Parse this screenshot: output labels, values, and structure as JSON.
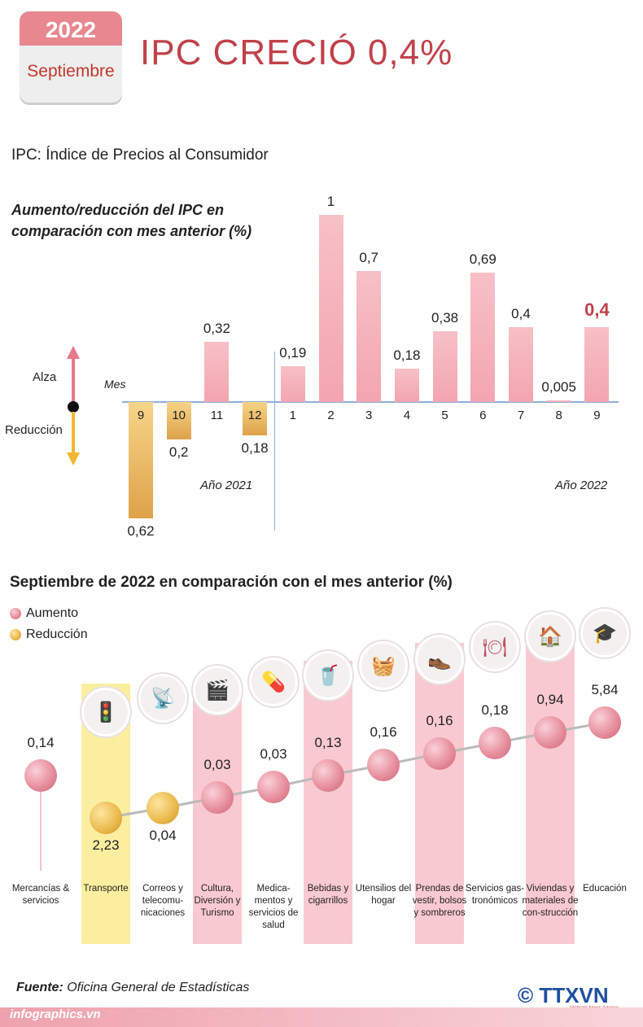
{
  "header": {
    "year": "2022",
    "month": "Septiembre",
    "title": "IPC CRECIÓ 0,4%",
    "subtitle": "IPC: Índice de Precios al Consumidor"
  },
  "legend1": {
    "up": "Alza",
    "down": "Reducción",
    "mes": "Mes",
    "year2021": "Año 2021",
    "year2022": "Año 2022"
  },
  "chart_data": [
    {
      "type": "bar",
      "title": "Aumento/reducción del IPC en comparación con mes anterior (%)",
      "xlabel": "Mes",
      "categories": [
        "9",
        "10",
        "11",
        "12",
        "1",
        "2",
        "3",
        "4",
        "5",
        "6",
        "7",
        "8",
        "9"
      ],
      "labels": [
        "0,62",
        "0,2",
        "0,32",
        "0,18",
        "0,19",
        "1",
        "0,7",
        "0,18",
        "0,38",
        "0,69",
        "0,4",
        "0,005",
        "0,4"
      ],
      "values": [
        -0.62,
        -0.2,
        0.32,
        -0.18,
        0.19,
        1,
        0.7,
        0.18,
        0.38,
        0.69,
        0.4,
        0.005,
        0.4
      ],
      "groups": [
        "Año 2021",
        "Año 2022"
      ]
    },
    {
      "type": "scatter",
      "title": "Septiembre de 2022 en comparación con el mes anterior (%)",
      "legend": [
        "Aumento",
        "Reducción"
      ],
      "categories": [
        "Mercancías & servicios",
        "Transporte",
        "Correos y telecomu-nicaciones",
        "Cultura, Diversión y Turismo",
        "Medica-mentos y servicios de salud",
        "Bebidas y cigarrillos",
        "Utensilios del hogar",
        "Prendas de vestir, bolsos y sombreros",
        "Servicios gas-tronómicos",
        "Viviendas y materiales de con-strucción",
        "Educación"
      ],
      "labels": [
        "0,14",
        "2,23",
        "0,04",
        "0,03",
        "0,03",
        "0,13",
        "0,16",
        "0,16",
        "0,18",
        "0,94",
        "5,84"
      ],
      "values": [
        0.14,
        -2.23,
        -0.04,
        0.03,
        0.03,
        0.13,
        0.16,
        0.16,
        0.18,
        0.94,
        5.84
      ]
    }
  ],
  "footer": {
    "source_label": "Fuente:",
    "source": "Oficina General de Estadísticas",
    "site": "infographics.vn",
    "logo": "© TTXVN",
    "logo_sub": "Vietnam News Agency"
  },
  "colors": {
    "accent": "#c0414a",
    "pink": "#f3a5b0",
    "gold": "#dea24a"
  }
}
